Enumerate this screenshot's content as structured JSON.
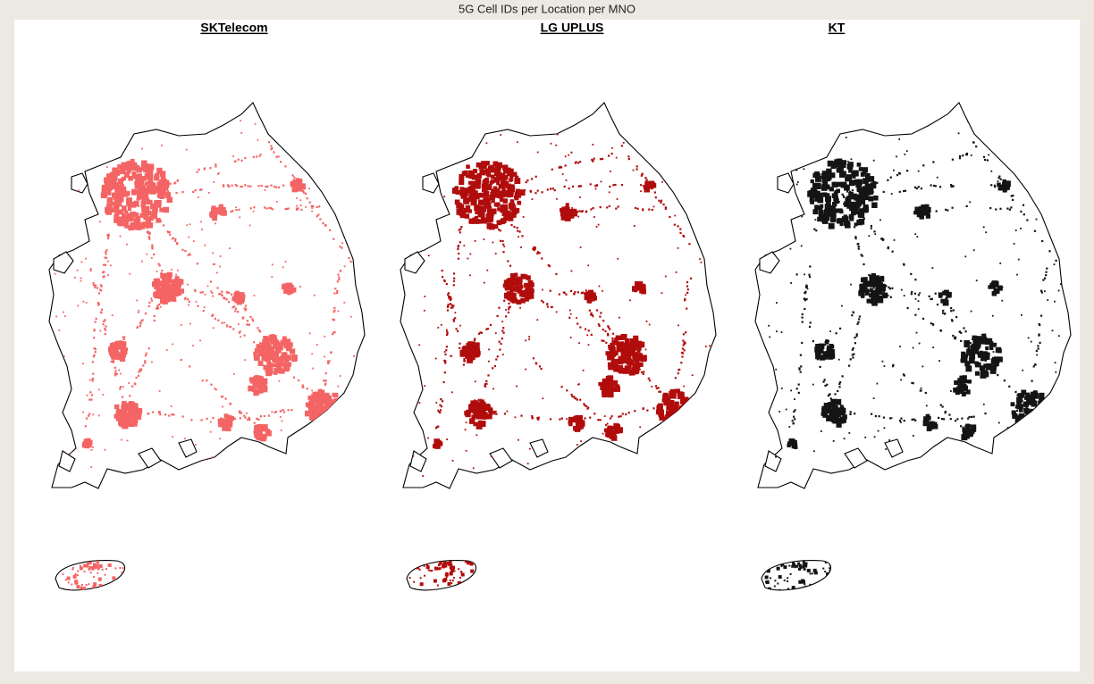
{
  "title": "5G Cell IDs per Location per MNO",
  "panels": [
    {
      "title": "SKTelecom",
      "color": "#f46464"
    },
    {
      "title": "LG UPLUS",
      "color": "#b10c0c"
    },
    {
      "title": "KT",
      "color": "#141414"
    }
  ]
}
